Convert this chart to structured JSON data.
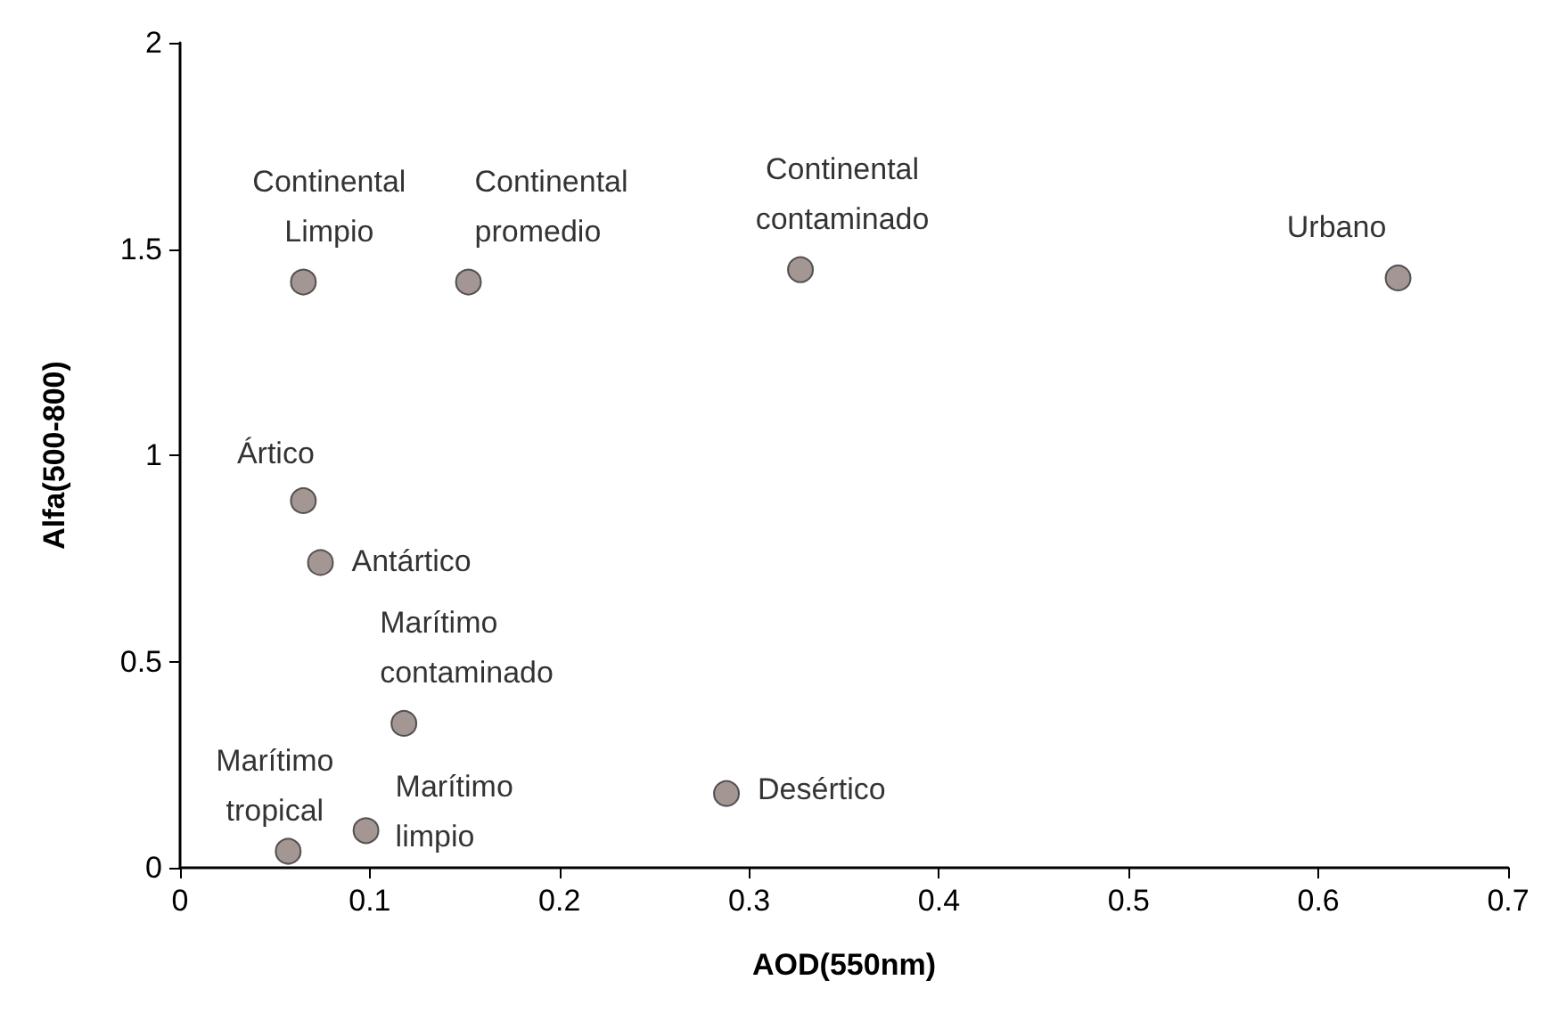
{
  "chart_data": {
    "type": "scatter",
    "xlabel": "AOD(550nm)",
    "ylabel": "Alfa(500-800)",
    "x": [
      0.065,
      0.152,
      0.327,
      0.642,
      0.065,
      0.074,
      0.118,
      0.288,
      0.098,
      0.057
    ],
    "values": [
      1.42,
      1.42,
      1.45,
      1.43,
      0.89,
      0.74,
      0.35,
      0.18,
      0.09,
      0.04
    ],
    "value_labels": [
      "Continental\nLimpio",
      "Continental\npromedio",
      "Continental\ncontaminado",
      "Urbano",
      "Ártico",
      "Antártico",
      "Marítimo\ncontaminado",
      "Desértico",
      "Marítimo\nlimpio",
      "Marítimo\ntropical"
    ],
    "color": "#8c7c78",
    "marker": "circle",
    "xlim": [
      0,
      0.7
    ],
    "xticks": [
      0,
      0.1,
      0.2,
      0.3,
      0.4,
      0.5,
      0.6,
      0.7
    ],
    "ylim": [
      0,
      2
    ],
    "yticks": [
      0,
      0.5,
      1,
      1.5,
      2
    ],
    "grid": false
  }
}
